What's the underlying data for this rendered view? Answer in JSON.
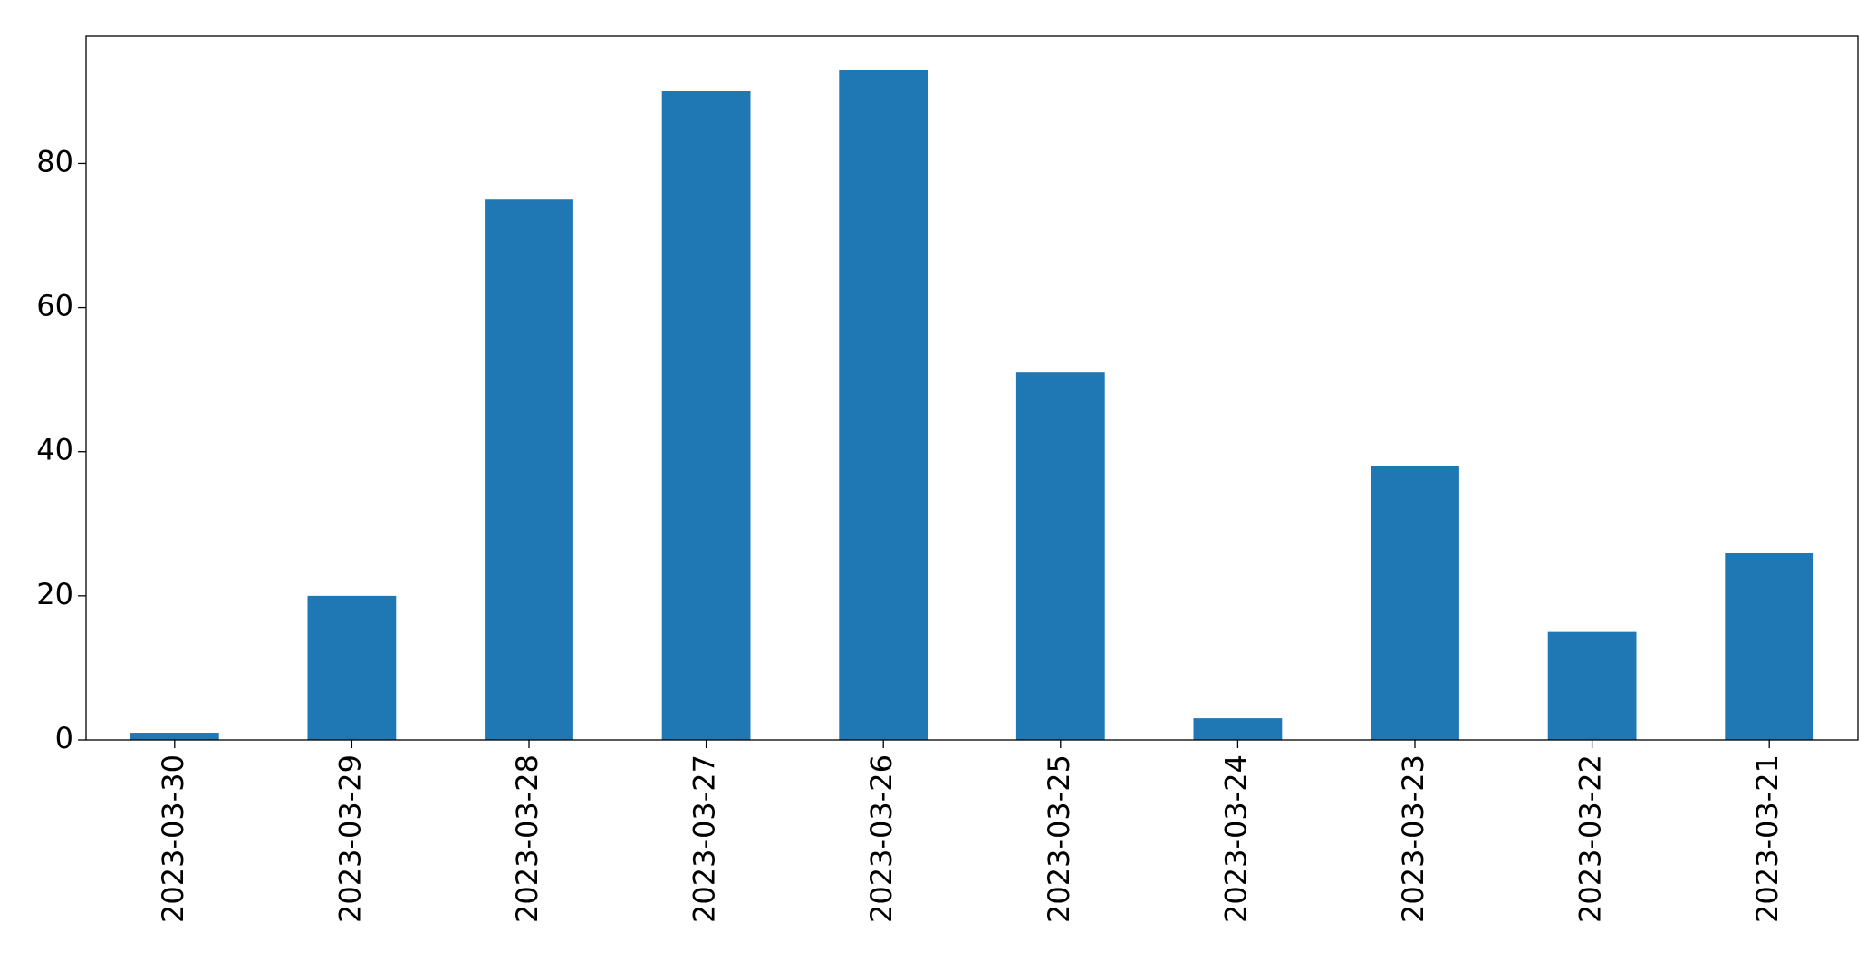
{
  "chart_data": {
    "type": "bar",
    "categories": [
      "2023-03-30",
      "2023-03-29",
      "2023-03-28",
      "2023-03-27",
      "2023-03-26",
      "2023-03-25",
      "2023-03-24",
      "2023-03-23",
      "2023-03-22",
      "2023-03-21"
    ],
    "values": [
      1,
      20,
      75,
      90,
      93,
      51,
      3,
      38,
      15,
      26
    ],
    "color": "#1f77b4",
    "ylim": [
      0,
      97.65
    ],
    "yticks": [
      0,
      20,
      40,
      60,
      80
    ],
    "grid": false
  }
}
